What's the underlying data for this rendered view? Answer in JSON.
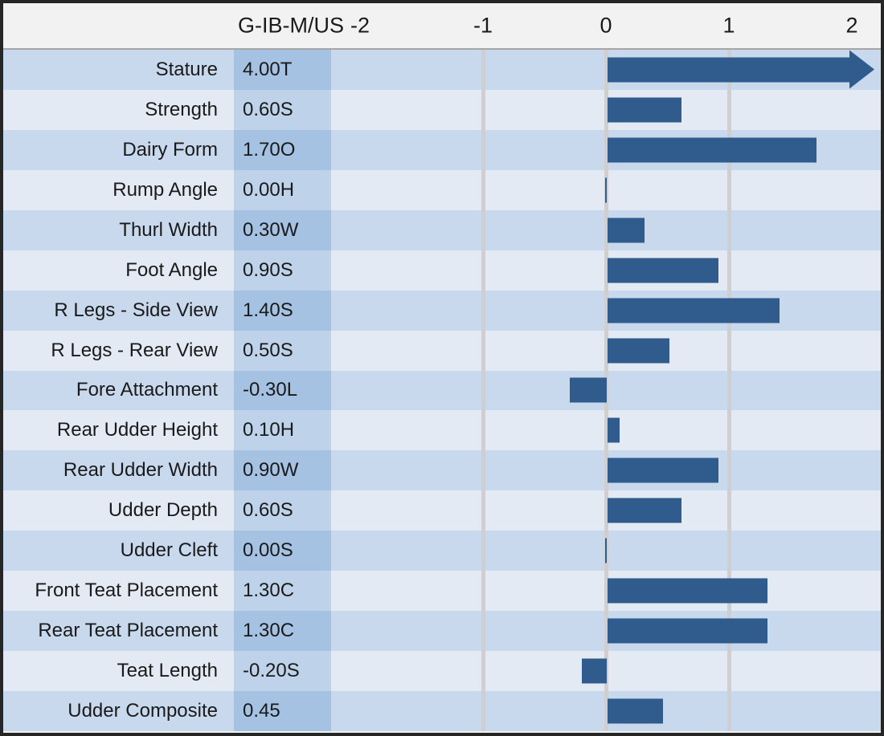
{
  "colors": {
    "bar": "#2F5C8C",
    "row_dark": "#C8D9EE",
    "row_light": "#E3EAF4",
    "band_dark": "#A5C2E2",
    "band_light": "#BED3EA",
    "gridline": "#D0CECE",
    "header_bg": "#F2F2F2",
    "header_rule": "#A6A6A6",
    "border": "#262626",
    "text": "#1A1A1A"
  },
  "header": {
    "scale_label": "G-IB-M/US",
    "tick_labels": [
      "-2",
      "-1",
      "0",
      "1",
      "2"
    ]
  },
  "chart_data": {
    "type": "bar",
    "orientation": "horizontal",
    "title": "",
    "scale_label": "G-IB-M/US",
    "categories": [
      "Stature",
      "Strength",
      "Dairy Form",
      "Rump Angle",
      "Thurl Width",
      "Foot Angle",
      "R Legs - Side View",
      "R Legs - Rear View",
      "Fore Attachment",
      "Rear Udder Height",
      "Rear Udder Width",
      "Udder Depth",
      "Udder Cleft",
      "Front Teat Placement",
      "Rear Teat Placement",
      "Teat Length",
      "Udder Composite"
    ],
    "values": [
      4.0,
      0.6,
      1.7,
      0.0,
      0.3,
      0.9,
      1.4,
      0.5,
      -0.3,
      0.1,
      0.9,
      0.6,
      0.0,
      1.3,
      1.3,
      -0.2,
      0.45
    ],
    "value_labels": [
      "4.00T",
      "0.60S",
      "1.70O",
      "0.00H",
      "0.30W",
      "0.90S",
      "1.40S",
      "0.50S",
      "-0.30L",
      "0.10H",
      "0.90W",
      "0.60S",
      "0.00S",
      "1.30C",
      "1.30C",
      "-0.20S",
      "0.45"
    ],
    "xlim": [
      -2,
      2
    ],
    "axis_ticks": [
      -2,
      -1,
      0,
      1,
      2
    ],
    "gridlines_at": [
      -1,
      0,
      1
    ],
    "bars_overflow_scale": [
      "Stature"
    ],
    "legend": "none",
    "grid": "vertical-only"
  }
}
